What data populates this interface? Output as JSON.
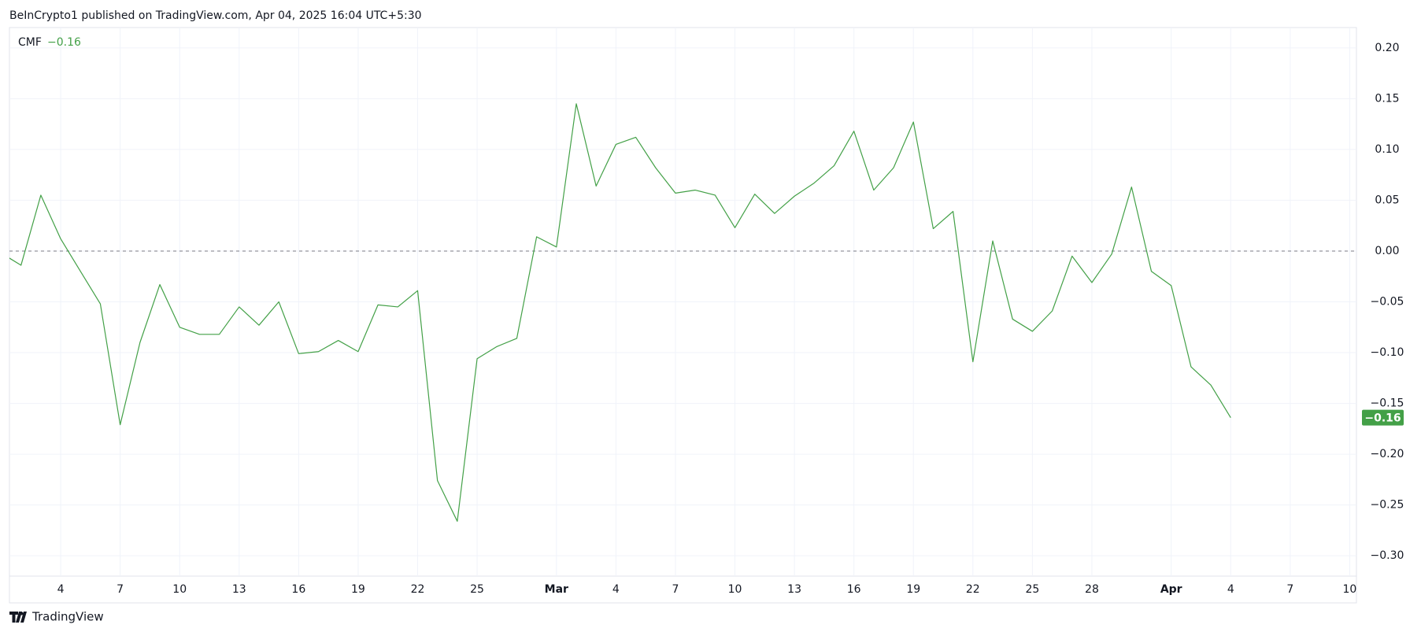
{
  "header": "BeInCrypto1 published on TradingView.com, Apr 04, 2025 16:04 UTC+5:30",
  "footer": "TradingView",
  "chart_data": {
    "type": "line",
    "categories": [
      null,
      null,
      null,
      "4",
      null,
      null,
      "7",
      null,
      null,
      "10",
      null,
      null,
      "13",
      null,
      null,
      "16",
      null,
      null,
      "19",
      null,
      null,
      "22",
      null,
      null,
      "25",
      null,
      null,
      null,
      "Mar",
      null,
      null,
      "4",
      null,
      null,
      "7",
      null,
      null,
      "10",
      null,
      null,
      "13",
      null,
      null,
      "16",
      null,
      null,
      "19",
      null,
      null,
      "22",
      null,
      null,
      "25",
      null,
      null,
      "28",
      null,
      null,
      null,
      "Apr",
      null,
      null,
      "4",
      null,
      null,
      "7",
      null,
      null,
      "10"
    ],
    "series": [
      {
        "name": "CMF",
        "color": "#43a047",
        "values": [
          -0.002,
          -0.014,
          0.055,
          0.012,
          -0.02,
          -0.052,
          -0.171,
          -0.09,
          -0.033,
          -0.075,
          -0.082,
          -0.082,
          -0.055,
          -0.073,
          -0.05,
          -0.101,
          -0.099,
          -0.088,
          -0.099,
          -0.053,
          -0.055,
          -0.039,
          -0.226,
          -0.266,
          -0.106,
          -0.094,
          -0.086,
          0.014,
          0.004,
          0.145,
          0.064,
          0.105,
          0.112,
          0.082,
          0.057,
          0.06,
          0.055,
          0.023,
          0.056,
          0.037,
          0.054,
          0.067,
          0.084,
          0.118,
          0.06,
          0.082,
          0.127,
          0.022,
          0.039,
          -0.109,
          0.01,
          -0.067,
          -0.079,
          -0.059,
          -0.005,
          -0.031,
          -0.003,
          0.063,
          -0.02,
          -0.034,
          -0.114,
          -0.132,
          -0.164,
          null,
          null,
          null,
          null,
          null,
          null
        ],
        "value_labels": [
          null,
          null,
          null,
          null,
          null,
          null,
          null,
          null,
          null,
          null,
          null,
          null,
          null,
          null,
          null,
          null,
          null,
          null,
          null,
          null,
          null,
          null,
          null,
          null,
          null,
          null,
          null,
          null,
          null,
          null,
          null,
          null,
          null,
          null,
          null,
          null,
          null,
          null,
          null,
          null,
          null,
          null,
          null,
          null,
          null,
          null,
          null,
          null,
          null,
          null,
          null,
          null,
          null,
          null,
          null,
          null,
          null,
          null,
          null,
          null,
          null,
          null,
          "−0.16",
          null,
          null,
          null,
          null,
          null,
          null
        ]
      }
    ],
    "ylim": [
      -0.32,
      0.22
    ],
    "yticks": [
      {
        "value": 0.2,
        "label": "0.20"
      },
      {
        "value": 0.15,
        "label": "0.15"
      },
      {
        "value": 0.1,
        "label": "0.10"
      },
      {
        "value": 0.05,
        "label": "0.05"
      },
      {
        "value": 0,
        "label": "0.00"
      },
      {
        "value": -0.05,
        "label": "−0.05"
      },
      {
        "value": -0.1,
        "label": "−0.10"
      },
      {
        "value": -0.15,
        "label": "−0.15"
      },
      {
        "value": -0.2,
        "label": "−0.20"
      },
      {
        "value": -0.25,
        "label": "−0.25"
      },
      {
        "value": -0.3,
        "label": "−0.30"
      }
    ],
    "baseline": 0,
    "grid": true
  }
}
